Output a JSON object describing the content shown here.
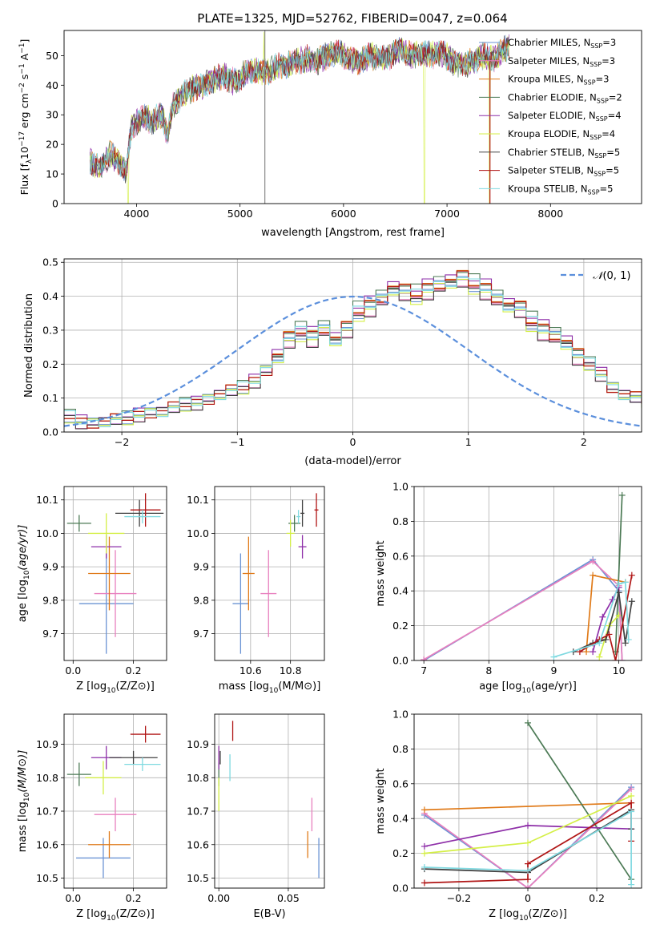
{
  "figure": {
    "title": "PLATE=1325, MJD=52762, FIBERID=0047, z=0.064"
  },
  "colors": {
    "chabrier_miles": "#6a93d4",
    "salpeter_miles": "#e87fbe",
    "kroupa_miles": "#e07b1a",
    "chabrier_elodie": "#4c7a55",
    "salpeter_elodie": "#8e2fa8",
    "kroupa_elodie": "#d4ef46",
    "chabrier_stelib": "#404040",
    "salpeter_stelib": "#b01515",
    "kroupa_stelib": "#7fd9e0",
    "gauss": "#5b8fdc"
  },
  "chart_data": [
    {
      "id": "spectrum",
      "type": "line",
      "xlabel": "wavelength [Angstrom, rest frame]",
      "ylabel_prefix": "Flux [f",
      "xlim": [
        3300,
        8880
      ],
      "ylim": [
        0,
        58.5
      ],
      "xticks": [
        4000,
        5000,
        6000,
        7000,
        8000
      ],
      "yticks": [
        0,
        10,
        20,
        30,
        40,
        50
      ],
      "grid": false,
      "legend": "top-right",
      "legend_entries": [
        {
          "label": "Chabrier MILES, N",
          "nssp": "=3",
          "color_key": "chabrier_miles"
        },
        {
          "label": "Salpeter MILES, N",
          "nssp": "=3",
          "color_key": "salpeter_miles"
        },
        {
          "label": "Kroupa MILES, N",
          "nssp": "=3",
          "color_key": "kroupa_miles"
        },
        {
          "label": "Chabrier ELODIE, N",
          "nssp": "=2",
          "color_key": "chabrier_elodie"
        },
        {
          "label": "Salpeter ELODIE, N",
          "nssp": "=4",
          "color_key": "salpeter_elodie"
        },
        {
          "label": "Kroupa ELODIE, N",
          "nssp": "=4",
          "color_key": "kroupa_elodie"
        },
        {
          "label": "Chabrier STELIB, N",
          "nssp": "=5",
          "color_key": "chabrier_stelib"
        },
        {
          "label": "Salpeter STELIB, N",
          "nssp": "=5",
          "color_key": "salpeter_stelib"
        },
        {
          "label": "Kroupa STELIB, N",
          "nssp": "=5",
          "color_key": "kroupa_stelib"
        }
      ],
      "continuum": {
        "x": [
          3550,
          3650,
          3750,
          3850,
          3900,
          3950,
          4050,
          4150,
          4250,
          4300,
          4350,
          4450,
          4550,
          4650,
          4750,
          4850,
          4950,
          5050,
          5150,
          5250,
          5350,
          5450,
          5550,
          5650,
          5750,
          5850,
          5950,
          6050,
          6150,
          6250,
          6350,
          6450,
          6550,
          6650,
          6750,
          6850,
          6950,
          7050,
          7150,
          7250,
          7350,
          7450,
          7550,
          7600
        ],
        "y": [
          14,
          12,
          17,
          13,
          10,
          26,
          29,
          28,
          30,
          23,
          33,
          37,
          39,
          40,
          42,
          43,
          41,
          44,
          45,
          44,
          46,
          47,
          48,
          49,
          48,
          50,
          51,
          49,
          48,
          50,
          49,
          50,
          52,
          50,
          51,
          50,
          51,
          48,
          47,
          48,
          50,
          49,
          52,
          53
        ]
      },
      "spikes": [
        {
          "x": 3920,
          "y": 0
        },
        {
          "x": 5230,
          "y": 58
        },
        {
          "x": 6780,
          "y": 0
        },
        {
          "x": 7410,
          "y": 0
        }
      ],
      "vertical_lines": [
        {
          "x": 5240,
          "y0": 0,
          "y1": 58.5
        },
        {
          "x": 7415,
          "y0": 0,
          "y1": 50
        }
      ]
    },
    {
      "id": "residuals",
      "type": "histogram",
      "xlabel": "(data-model)/error",
      "ylabel": "Normed distribution",
      "xlim": [
        -2.5,
        2.5
      ],
      "ylim": [
        0,
        0.51
      ],
      "xticks": [
        -2,
        -1,
        0,
        1,
        2
      ],
      "yticks": [
        0.0,
        0.1,
        0.2,
        0.3,
        0.4,
        0.5
      ],
      "grid": true,
      "legend": "top-right",
      "gauss_label": "(0, 1)",
      "bin_width": 0.1,
      "bin_start": -2.5,
      "base_profile": [
        0.045,
        0.03,
        0.025,
        0.03,
        0.035,
        0.04,
        0.05,
        0.055,
        0.06,
        0.07,
        0.08,
        0.085,
        0.095,
        0.11,
        0.12,
        0.13,
        0.15,
        0.18,
        0.22,
        0.27,
        0.29,
        0.28,
        0.3,
        0.27,
        0.3,
        0.35,
        0.37,
        0.39,
        0.42,
        0.41,
        0.4,
        0.42,
        0.43,
        0.44,
        0.45,
        0.43,
        0.42,
        0.39,
        0.37,
        0.36,
        0.32,
        0.3,
        0.28,
        0.26,
        0.22,
        0.2,
        0.17,
        0.13,
        0.11,
        0.1,
        0.09,
        0.08,
        0.07,
        0.065,
        0.06,
        0.05,
        0.045,
        0.04,
        0.035,
        0.03
      ],
      "series_offsets": [
        0.0,
        -0.012,
        0.01,
        0.02,
        0.015,
        -0.008,
        -0.015,
        0.008,
        0.005
      ]
    },
    {
      "id": "age_vs_Z",
      "type": "scatter",
      "xlabel": "Z [log",
      "ylabel": "age  [log",
      "xlim": [
        -0.03,
        0.31
      ],
      "ylim": [
        9.62,
        10.14
      ],
      "xticks": [
        0.0,
        0.2
      ],
      "yticks": [
        9.7,
        9.8,
        9.9,
        10.0,
        10.1
      ],
      "grid": true,
      "points": [
        {
          "color_key": "chabrier_miles",
          "x": 0.11,
          "xerr": 0.09,
          "y": 9.79,
          "yerr": 0.15
        },
        {
          "color_key": "salpeter_miles",
          "x": 0.14,
          "xerr": 0.07,
          "y": 9.82,
          "yerr": 0.13
        },
        {
          "color_key": "kroupa_miles",
          "x": 0.12,
          "xerr": 0.07,
          "y": 9.88,
          "yerr": 0.11
        },
        {
          "color_key": "chabrier_elodie",
          "x": 0.02,
          "xerr": 0.04,
          "y": 10.03,
          "yerr": 0.025
        },
        {
          "color_key": "salpeter_elodie",
          "x": 0.11,
          "xerr": 0.05,
          "y": 9.96,
          "yerr": 0.035
        },
        {
          "color_key": "kroupa_elodie",
          "x": 0.11,
          "xerr": 0.06,
          "y": 10.0,
          "yerr": 0.06
        },
        {
          "color_key": "chabrier_stelib",
          "x": 0.22,
          "xerr": 0.08,
          "y": 10.06,
          "yerr": 0.04
        },
        {
          "color_key": "salpeter_stelib",
          "x": 0.24,
          "xerr": 0.05,
          "y": 10.07,
          "yerr": 0.05
        },
        {
          "color_key": "kroupa_stelib",
          "x": 0.23,
          "xerr": 0.06,
          "y": 10.05,
          "yerr": 0.02
        }
      ]
    },
    {
      "id": "age_vs_mass",
      "type": "scatter",
      "xlabel": "mass [log",
      "xlim": [
        10.42,
        10.97
      ],
      "ylim": [
        9.62,
        10.14
      ],
      "xticks": [
        10.6,
        10.8
      ],
      "yticks": [
        9.7,
        9.8,
        9.9,
        10.0,
        10.1
      ],
      "grid": true,
      "points": [
        {
          "color_key": "chabrier_miles",
          "x": 10.55,
          "xerr": 0.04,
          "y": 9.79,
          "yerr": 0.15
        },
        {
          "color_key": "salpeter_miles",
          "x": 10.69,
          "xerr": 0.04,
          "y": 9.82,
          "yerr": 0.13
        },
        {
          "color_key": "kroupa_miles",
          "x": 10.59,
          "xerr": 0.03,
          "y": 9.88,
          "yerr": 0.11
        },
        {
          "color_key": "chabrier_elodie",
          "x": 10.82,
          "xerr": 0.03,
          "y": 10.03,
          "yerr": 0.025
        },
        {
          "color_key": "salpeter_elodie",
          "x": 10.86,
          "xerr": 0.02,
          "y": 9.96,
          "yerr": 0.035
        },
        {
          "color_key": "kroupa_elodie",
          "x": 10.8,
          "xerr": 0.02,
          "y": 10.0,
          "yerr": 0.04
        },
        {
          "color_key": "chabrier_stelib",
          "x": 10.86,
          "xerr": 0.01,
          "y": 10.06,
          "yerr": 0.04
        },
        {
          "color_key": "salpeter_stelib",
          "x": 10.93,
          "xerr": 0.01,
          "y": 10.07,
          "yerr": 0.05
        },
        {
          "color_key": "kroupa_stelib",
          "x": 10.84,
          "xerr": 0.01,
          "y": 10.05,
          "yerr": 0.02
        }
      ]
    },
    {
      "id": "massweight_vs_age",
      "type": "line",
      "xlabel": "age  [log",
      "ylabel": "mass weight",
      "xlim": [
        6.85,
        10.35
      ],
      "ylim": [
        0,
        1
      ],
      "xticks": [
        7,
        8,
        9,
        10
      ],
      "yticks": [
        0.0,
        0.2,
        0.4,
        0.6,
        0.8,
        1.0
      ],
      "grid": true,
      "series": [
        {
          "color_key": "chabrier_miles",
          "x": [
            7.0,
            9.6,
            10.0,
            10.05
          ],
          "y": [
            0.0,
            0.58,
            0.4,
            0.0
          ]
        },
        {
          "color_key": "salpeter_miles",
          "x": [
            7.0,
            9.6,
            10.0,
            10.05
          ],
          "y": [
            0.005,
            0.57,
            0.43,
            0.0
          ]
        },
        {
          "color_key": "kroupa_miles",
          "x": [
            9.5,
            9.6,
            10.1
          ],
          "y": [
            0.05,
            0.49,
            0.45
          ]
        },
        {
          "color_key": "chabrier_elodie",
          "x": [
            9.95,
            10.05
          ],
          "y": [
            0.05,
            0.95
          ]
        },
        {
          "color_key": "salpeter_elodie",
          "x": [
            9.6,
            9.75,
            9.9,
            10.0
          ],
          "y": [
            0.05,
            0.25,
            0.35,
            0.42
          ]
        },
        {
          "color_key": "kroupa_elodie",
          "x": [
            9.7,
            9.85,
            10.0
          ],
          "y": [
            0.02,
            0.2,
            0.26
          ]
        },
        {
          "color_key": "chabrier_stelib",
          "x": [
            9.3,
            9.6,
            9.8,
            10.0,
            10.1,
            10.2
          ],
          "y": [
            0.05,
            0.1,
            0.12,
            0.39,
            0.1,
            0.34
          ]
        },
        {
          "color_key": "salpeter_stelib",
          "x": [
            9.4,
            9.7,
            9.85,
            9.95,
            10.2
          ],
          "y": [
            0.05,
            0.12,
            0.15,
            0.0,
            0.49
          ]
        },
        {
          "color_key": "kroupa_stelib",
          "x": [
            9.0,
            9.7,
            10.0,
            10.1,
            10.15
          ],
          "y": [
            0.02,
            0.1,
            0.44,
            0.45,
            0.12
          ]
        }
      ]
    },
    {
      "id": "mass_vs_Z",
      "type": "scatter",
      "xlabel": "Z [log",
      "ylabel": "mass [log",
      "xlim": [
        -0.03,
        0.31
      ],
      "ylim": [
        10.47,
        10.99
      ],
      "xticks": [
        0.0,
        0.2
      ],
      "yticks": [
        10.5,
        10.6,
        10.7,
        10.8,
        10.9
      ],
      "grid": true,
      "points": [
        {
          "color_key": "chabrier_miles",
          "x": 0.1,
          "xerr": 0.09,
          "y": 10.56,
          "yerr": 0.06
        },
        {
          "color_key": "salpeter_miles",
          "x": 0.14,
          "xerr": 0.07,
          "y": 10.69,
          "yerr": 0.05
        },
        {
          "color_key": "kroupa_miles",
          "x": 0.12,
          "xerr": 0.07,
          "y": 10.6,
          "yerr": 0.04
        },
        {
          "color_key": "chabrier_elodie",
          "x": 0.02,
          "xerr": 0.04,
          "y": 10.81,
          "yerr": 0.035
        },
        {
          "color_key": "salpeter_elodie",
          "x": 0.11,
          "xerr": 0.05,
          "y": 10.86,
          "yerr": 0.035
        },
        {
          "color_key": "kroupa_elodie",
          "x": 0.1,
          "xerr": 0.06,
          "y": 10.8,
          "yerr": 0.05
        },
        {
          "color_key": "chabrier_stelib",
          "x": 0.2,
          "xerr": 0.08,
          "y": 10.86,
          "yerr": 0.02
        },
        {
          "color_key": "salpeter_stelib",
          "x": 0.24,
          "xerr": 0.05,
          "y": 10.93,
          "yerr": 0.025
        },
        {
          "color_key": "kroupa_stelib",
          "x": 0.23,
          "xerr": 0.06,
          "y": 10.84,
          "yerr": 0.02
        }
      ]
    },
    {
      "id": "mass_vs_ebv",
      "type": "scatter",
      "xlabel": "E(B-V)",
      "xlim": [
        -0.003,
        0.076
      ],
      "ylim": [
        10.47,
        10.99
      ],
      "xticks": [
        0.0,
        0.05
      ],
      "yticks": [
        10.5,
        10.6,
        10.7,
        10.8,
        10.9
      ],
      "grid": true,
      "points": [
        {
          "color_key": "chabrier_miles",
          "x": 0.072,
          "xerr": 0,
          "y": 10.56,
          "yerr": 0.06
        },
        {
          "color_key": "salpeter_miles",
          "x": 0.067,
          "xerr": 0,
          "y": 10.69,
          "yerr": 0.05
        },
        {
          "color_key": "kroupa_miles",
          "x": 0.064,
          "xerr": 0,
          "y": 10.6,
          "yerr": 0.04
        },
        {
          "color_key": "chabrier_elodie",
          "x": 0.0,
          "xerr": 0,
          "y": 10.81,
          "yerr": 0.035
        },
        {
          "color_key": "salpeter_elodie",
          "x": 0.0,
          "xerr": 0,
          "y": 10.86,
          "yerr": 0.035
        },
        {
          "color_key": "kroupa_elodie",
          "x": 0.0,
          "xerr": 0,
          "y": 10.75,
          "yerr": 0.05
        },
        {
          "color_key": "chabrier_stelib",
          "x": 0.001,
          "xerr": 0,
          "y": 10.86,
          "yerr": 0.02
        },
        {
          "color_key": "salpeter_stelib",
          "x": 0.01,
          "xerr": 0,
          "y": 10.94,
          "yerr": 0.03
        },
        {
          "color_key": "kroupa_stelib",
          "x": 0.008,
          "xerr": 0,
          "y": 10.83,
          "yerr": 0.04
        }
      ]
    },
    {
      "id": "massweight_vs_Z",
      "type": "line",
      "xlabel": "Z [log",
      "ylabel": "mass weight",
      "xlim": [
        -0.33,
        0.33
      ],
      "ylim": [
        0,
        1
      ],
      "xticks": [
        -0.2,
        0.0,
        0.2
      ],
      "yticks": [
        0.0,
        0.2,
        0.4,
        0.6,
        0.8,
        1.0
      ],
      "grid": true,
      "series": [
        {
          "color_key": "chabrier_miles",
          "x": [
            -0.3,
            0.0,
            0.3
          ],
          "y": [
            0.42,
            0.0,
            0.58
          ]
        },
        {
          "color_key": "salpeter_miles",
          "x": [
            -0.3,
            0.0,
            0.3
          ],
          "y": [
            0.43,
            0.0,
            0.57
          ]
        },
        {
          "color_key": "kroupa_miles",
          "x": [
            -0.3,
            0.3
          ],
          "y": [
            0.45,
            0.49
          ]
        },
        {
          "color_key": "chabrier_elodie",
          "x": [
            0.0,
            0.3
          ],
          "y": [
            0.95,
            0.05
          ]
        },
        {
          "color_key": "salpeter_elodie",
          "x": [
            -0.3,
            0.0,
            0.3
          ],
          "y": [
            0.24,
            0.36,
            0.34
          ]
        },
        {
          "color_key": "kroupa_elodie",
          "x": [
            -0.3,
            0.0,
            0.3
          ],
          "y": [
            0.2,
            0.26,
            0.53
          ]
        },
        {
          "color_key": "chabrier_stelib",
          "x": [
            -0.3,
            0.0,
            0.3,
            0.3
          ],
          "y": [
            0.11,
            0.09,
            0.45,
            0.34
          ]
        },
        {
          "color_key": "salpeter_stelib",
          "x": [
            -0.3,
            0.0,
            0.0,
            0.3,
            0.3
          ],
          "y": [
            0.03,
            0.05,
            0.14,
            0.49,
            0.27
          ]
        },
        {
          "color_key": "kroupa_stelib",
          "x": [
            -0.3,
            0.0,
            0.3,
            0.3
          ],
          "y": [
            0.12,
            0.1,
            0.44,
            0.02
          ]
        }
      ]
    }
  ]
}
